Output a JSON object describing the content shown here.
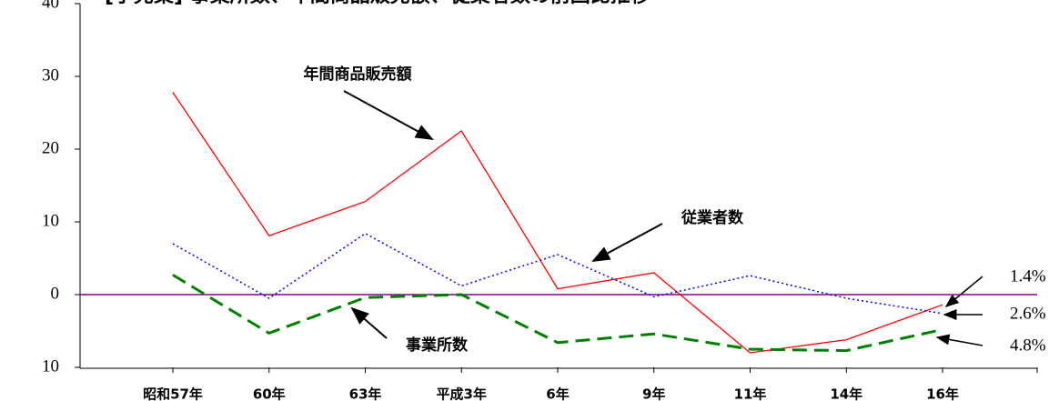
{
  "chart_data": {
    "type": "line",
    "title": "[小売業] 事業所数、年間商品販売額、従業者数の前回比推移",
    "categories": [
      "昭和57年",
      "60年",
      "63年",
      "平成3年",
      "6年",
      "9年",
      "11年",
      "14年",
      "16年"
    ],
    "series": [
      {
        "name": "年間商品販売額",
        "color": "#ff0000",
        "style": "solid",
        "values": [
          27.8,
          8.1,
          12.8,
          22.5,
          0.8,
          3.0,
          -8.0,
          -6.2,
          -1.4
        ]
      },
      {
        "name": "従業者数",
        "color": "#0000ff",
        "style": "dotted",
        "values": [
          7.0,
          -0.5,
          8.4,
          1.2,
          5.5,
          -0.3,
          2.6,
          -0.5,
          -2.6
        ]
      },
      {
        "name": "事業所数",
        "color": "#008000",
        "style": "dashed",
        "values": [
          2.7,
          -5.3,
          -0.4,
          0.0,
          -6.6,
          -5.4,
          -7.5,
          -7.7,
          -4.8
        ]
      }
    ],
    "annotations": [
      "1.4%",
      "2.6%",
      "4.8%"
    ],
    "ylim": [
      -10,
      40
    ],
    "yticks": [
      {
        "value": -10,
        "label": "10"
      },
      0,
      10,
      20,
      30,
      40
    ]
  }
}
